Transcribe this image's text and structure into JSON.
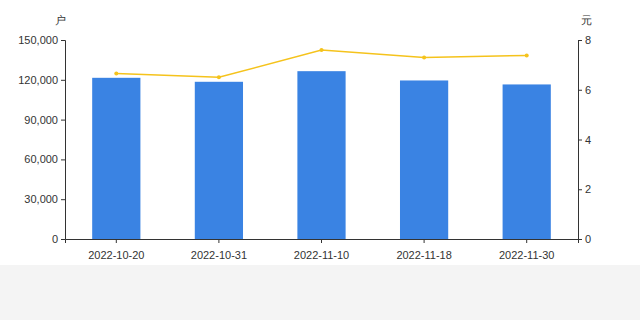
{
  "chart_data": {
    "type": "bar",
    "y_label": "户",
    "y2_label": "元",
    "categories": [
      "2022-10-20",
      "2022-10-31",
      "2022-11-10",
      "2022-11-18",
      "2022-11-30"
    ],
    "series": [
      {
        "type": "bar",
        "color": "#3a83e3",
        "values": [
          121500,
          118500,
          126500,
          119500,
          116500
        ]
      },
      {
        "type": "line",
        "axis": "y2",
        "color": "#f5c31c",
        "marker": "circle",
        "values": [
          6.65,
          6.5,
          7.6,
          7.3,
          7.38
        ]
      }
    ],
    "ylim": [
      0,
      150000
    ],
    "yticks": [
      0,
      {
        "value": 30000,
        "label": "30,000"
      },
      {
        "value": 60000,
        "label": "60,000"
      },
      {
        "value": 90000,
        "label": "90,000"
      },
      {
        "value": 120000,
        "label": "120,000"
      },
      {
        "value": 150000,
        "label": "150,000"
      }
    ],
    "y2lim": [
      0,
      8
    ],
    "y2ticks": [
      0,
      2,
      4,
      6,
      8
    ],
    "grid": false
  }
}
